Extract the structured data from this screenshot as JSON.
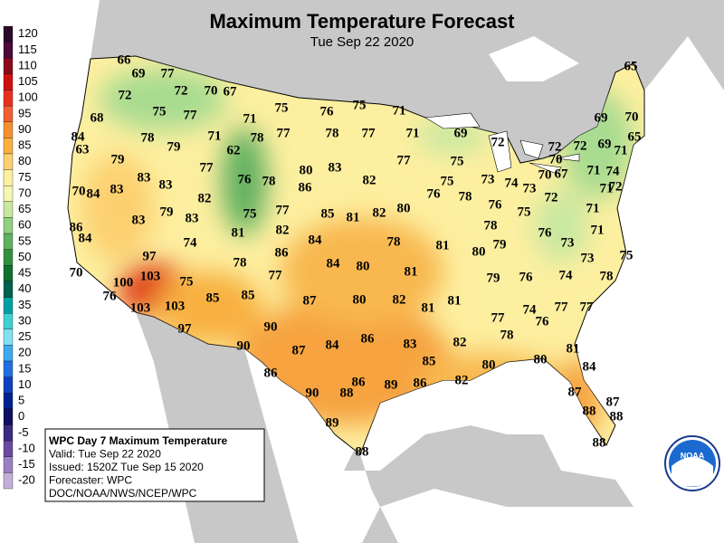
{
  "header": {
    "title": "Maximum Temperature Forecast",
    "subtitle": "Tue Sep 22 2020"
  },
  "legend": {
    "ticks": [
      120,
      115,
      110,
      105,
      100,
      95,
      90,
      85,
      80,
      75,
      70,
      65,
      60,
      55,
      50,
      45,
      40,
      35,
      30,
      25,
      20,
      15,
      10,
      5,
      0,
      -5,
      -10,
      -15,
      -20
    ],
    "colors": [
      "#2a0a2a",
      "#4b0a3a",
      "#8b0a1a",
      "#d01010",
      "#e83020",
      "#f06030",
      "#f49030",
      "#f8b040",
      "#fcd070",
      "#fef0a0",
      "#f4f8b0",
      "#c8e8a0",
      "#90d080",
      "#60b060",
      "#309040",
      "#107030",
      "#006050",
      "#00a0a0",
      "#40d0d0",
      "#80e0f0",
      "#40a8f0",
      "#2070e0",
      "#1040c0",
      "#002090",
      "#101060",
      "#3a2a80",
      "#6a4aa0",
      "#9a80c0",
      "#c0b0d8"
    ]
  },
  "temperatures": [
    66,
    69,
    77,
    72,
    72,
    70,
    67,
    75,
    77,
    71,
    75,
    76,
    75,
    71,
    68,
    84,
    78,
    79,
    71,
    78,
    77,
    78,
    77,
    71,
    69,
    72,
    65,
    69,
    70,
    72,
    72,
    69,
    71,
    65,
    63,
    79,
    62,
    77,
    80,
    83,
    77,
    75,
    70,
    71,
    74,
    83,
    83,
    76,
    78,
    82,
    75,
    73,
    74,
    70,
    67,
    72,
    71,
    70,
    84,
    83,
    86,
    76,
    78,
    76,
    73,
    72,
    82,
    79,
    83,
    75,
    77,
    82,
    85,
    81,
    82,
    80,
    78,
    75,
    71,
    86,
    83,
    81,
    84,
    78,
    81,
    80,
    79,
    76,
    71,
    73,
    84,
    97,
    74,
    86,
    78,
    84,
    80,
    81,
    73,
    75,
    78,
    70,
    103,
    75,
    77,
    79,
    76,
    74,
    76,
    100,
    103,
    85,
    85,
    87,
    80,
    82,
    81,
    81,
    77,
    74,
    76,
    77,
    77,
    103,
    97,
    90,
    87,
    84,
    86,
    83,
    82,
    78,
    90,
    85,
    80,
    80,
    81,
    86,
    82,
    84,
    90,
    88,
    86,
    89,
    86,
    87,
    87,
    88,
    88,
    89,
    88,
    88
  ],
  "info_box": [
    "WPC Day 7 Maximum Temperature",
    "Valid: Tue Sep 22 2020",
    "Issued: 1520Z Tue Sep 15 2020",
    "Forecaster: WPC",
    "DOC/NOAA/NWS/NCEP/WPC"
  ],
  "logo": "NOAA"
}
